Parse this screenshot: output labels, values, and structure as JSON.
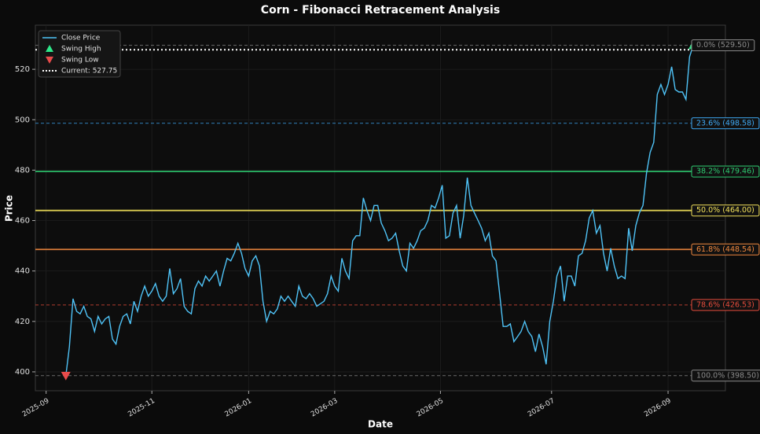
{
  "chart_data": {
    "type": "line",
    "title": "Corn - Fibonacci Retracement Analysis",
    "xlabel": "Date",
    "ylabel": "Price",
    "series": [
      {
        "name": "Close Price",
        "color": "#4fc3f7",
        "values": [
          398.5,
          410,
          429,
          424,
          423,
          426,
          422,
          421,
          416,
          422,
          419,
          421,
          422,
          413,
          411,
          418,
          422,
          423,
          419,
          428,
          424,
          430,
          434,
          430,
          432,
          435,
          430,
          428,
          430,
          441,
          431,
          433,
          437,
          426,
          424,
          423,
          433,
          436,
          434,
          438,
          436,
          438,
          440,
          434,
          440,
          445,
          444,
          447,
          451,
          447,
          441,
          438,
          444,
          446,
          442,
          428,
          420,
          424,
          423,
          425,
          430,
          428,
          430,
          428,
          426,
          434,
          430,
          429,
          431,
          429,
          426,
          427,
          428,
          431,
          438,
          434,
          432,
          445,
          440,
          437,
          452,
          454,
          454,
          469,
          464,
          460,
          466,
          466,
          459,
          456,
          452,
          453,
          455,
          448,
          442,
          440,
          451,
          449,
          452,
          456,
          457,
          460,
          466,
          465,
          469,
          474,
          453,
          454,
          463,
          466,
          453,
          462,
          477,
          466,
          463,
          460,
          457,
          452,
          455,
          446,
          444,
          431,
          418,
          418,
          419,
          412,
          414,
          416,
          420,
          416,
          414,
          408,
          415,
          410,
          403,
          420,
          428,
          438,
          442,
          428,
          438,
          438,
          434,
          446,
          447,
          452,
          461,
          464,
          455,
          458,
          447,
          440,
          449,
          442,
          437,
          438,
          437,
          457,
          448,
          458,
          463,
          466,
          479,
          487,
          491,
          510,
          514,
          510,
          514,
          521,
          512,
          511,
          511,
          508,
          525,
          529.5
        ]
      }
    ],
    "swing_high": {
      "name": "Swing High",
      "x": 175,
      "value": 529.5,
      "color": "#2ee88a"
    },
    "swing_low": {
      "name": "Swing Low",
      "x": 0,
      "value": 398.5,
      "color": "#e84b4b"
    },
    "current": {
      "label": "Current: 527.75",
      "value": 527.75,
      "color": "#ffffff"
    },
    "levels": [
      {
        "label": "0.0% (529.50)",
        "value": 529.5,
        "color": "#8a8a8a",
        "style": "dashed"
      },
      {
        "label": "23.6% (498.58)",
        "value": 498.58,
        "color": "#3fa9f5",
        "style": "dashed"
      },
      {
        "label": "38.2% (479.46)",
        "value": 479.46,
        "color": "#2ecc71",
        "style": "solid"
      },
      {
        "label": "50.0% (464.00)",
        "value": 464.0,
        "color": "#f1e05a",
        "style": "solid"
      },
      {
        "label": "61.8% (448.54)",
        "value": 448.54,
        "color": "#f0883e",
        "style": "solid"
      },
      {
        "label": "78.6% (426.53)",
        "value": 426.53,
        "color": "#e74c3c",
        "style": "dashed"
      },
      {
        "label": "100.0% (398.50)",
        "value": 398.5,
        "color": "#8a8a8a",
        "style": "dashed"
      }
    ],
    "xlim": [
      -8.5,
      184
    ],
    "xticks": [
      {
        "value": -5.5,
        "label": "2025-09"
      },
      {
        "value": 24,
        "label": "2025-11"
      },
      {
        "value": 51,
        "label": "2026-01"
      },
      {
        "value": 75,
        "label": "2026-03"
      },
      {
        "value": 104.5,
        "label": "2026-05"
      },
      {
        "value": 135.5,
        "label": "2026-07"
      },
      {
        "value": 168,
        "label": "2026-09"
      }
    ],
    "ylim": [
      392.5,
      537.5
    ],
    "yticks": [
      400,
      420,
      440,
      460,
      480,
      500,
      520
    ],
    "grid": true
  }
}
